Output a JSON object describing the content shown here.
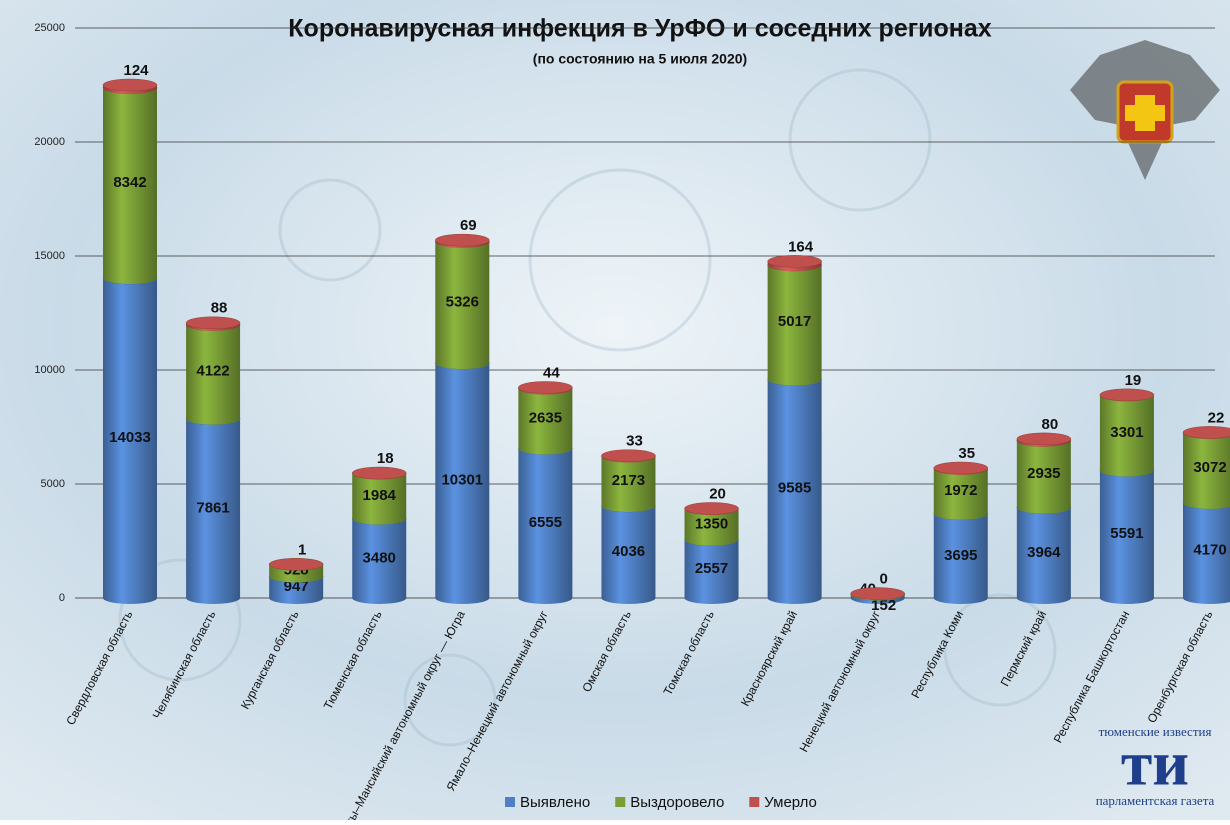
{
  "chart_data": {
    "type": "stacked-cylinder",
    "title": "Коронавирусная инфекция в УрФО и соседних регионах",
    "subtitle": "(по состоянию на 5 июля 2020)",
    "categories": [
      "Свердловская область",
      "Челябинская область",
      "Курганская область",
      "Тюменская область",
      "Ханты–Мансийский автономный округ — Югра",
      "Ямало–Ненецкий автономный округ",
      "Омская область",
      "Томская область",
      "Красноярский край",
      "Ненецкий автономный округ",
      "Республика Коми",
      "Пермский край",
      "Республика Башкортостан",
      "Оренбургская область"
    ],
    "series": [
      {
        "name": "Выявлено",
        "color": "#4f7fc4",
        "values": [
          14033,
          7861,
          947,
          3480,
          10301,
          6555,
          4036,
          2557,
          9585,
          152,
          3695,
          3964,
          5591,
          4170
        ]
      },
      {
        "name": "Выздоровело",
        "color": "#7a9e36",
        "values": [
          8342,
          4122,
          528,
          1984,
          5326,
          2635,
          2173,
          1350,
          5017,
          40,
          1972,
          2935,
          3301,
          3072
        ]
      },
      {
        "name": "Умерло",
        "color": "#c0504d",
        "values": [
          124,
          88,
          1,
          18,
          69,
          44,
          33,
          20,
          164,
          0,
          35,
          80,
          19,
          22
        ]
      }
    ],
    "ylim": [
      0,
      25000
    ],
    "yticks": [
      0,
      5000,
      10000,
      15000,
      20000,
      25000
    ],
    "grid": true,
    "legend": "bottom"
  },
  "branding": {
    "top": "тюменские известия",
    "mark": "ти",
    "bottom": "парламентская газета"
  }
}
